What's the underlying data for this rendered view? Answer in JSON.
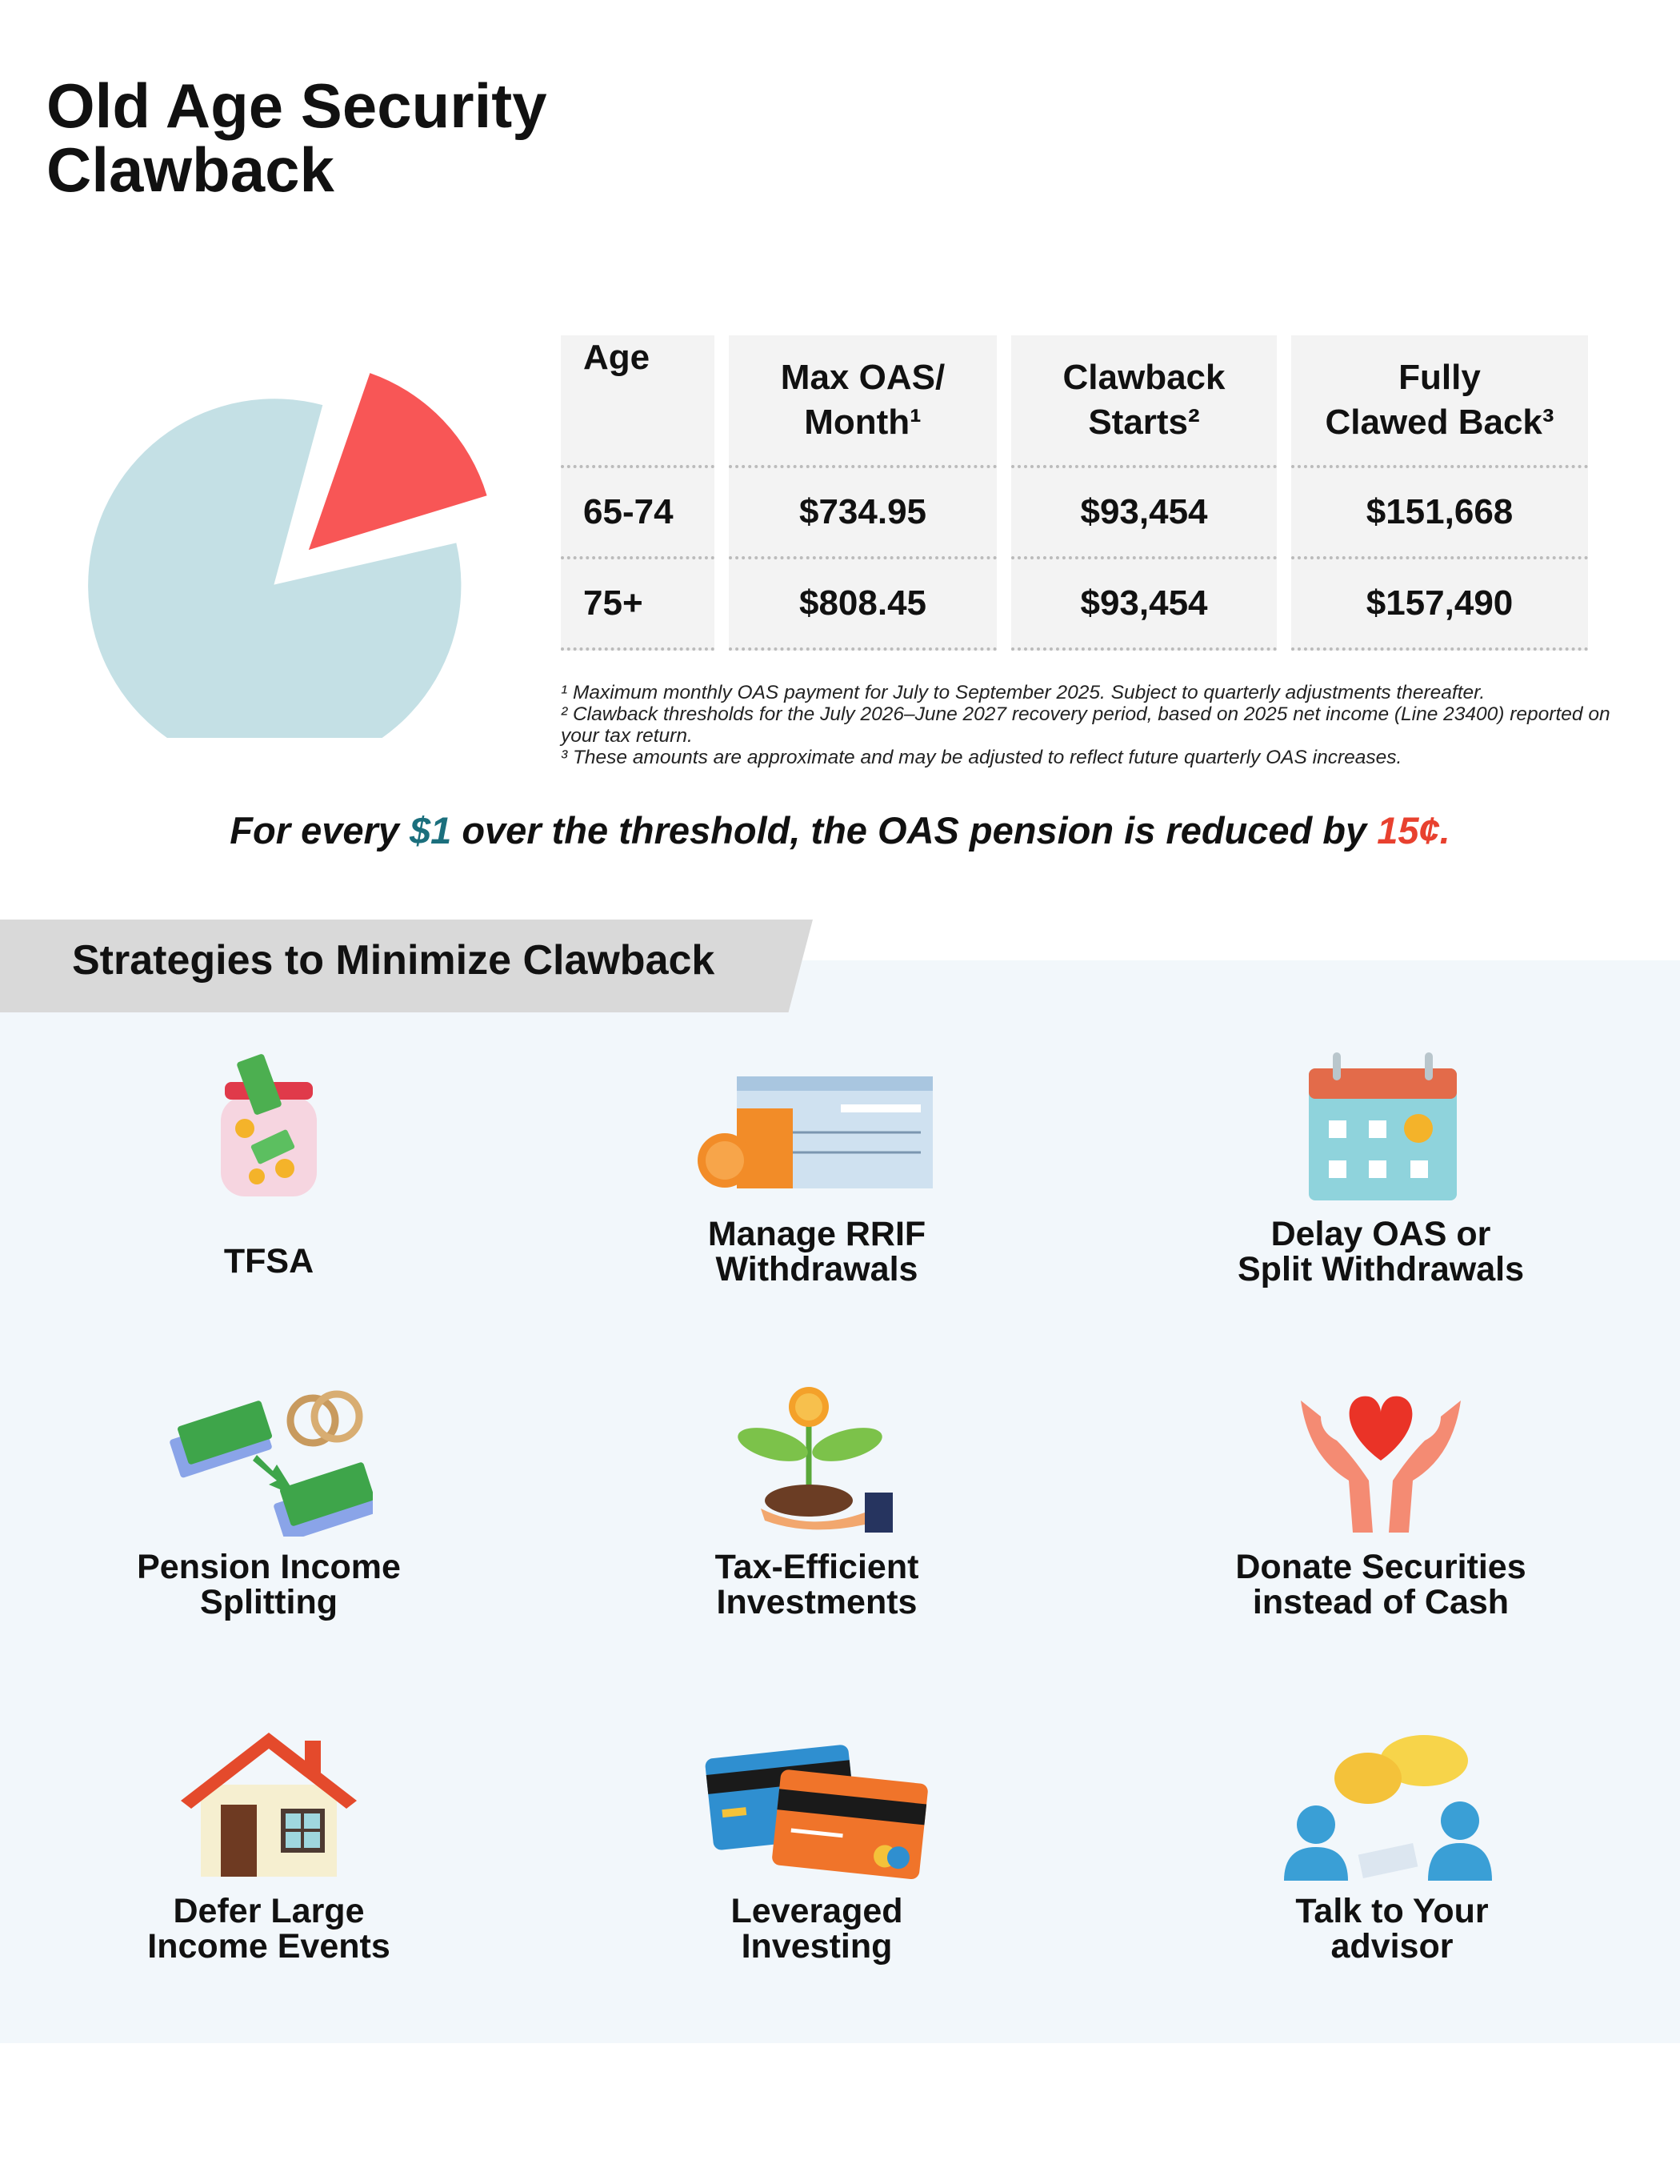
{
  "title": [
    "Old Age Security",
    "Clawback"
  ],
  "table": {
    "headers": [
      [
        "Age"
      ],
      [
        "Max OAS/",
        "Month¹"
      ],
      [
        "Clawback",
        "Starts²"
      ],
      [
        "Fully",
        "Clawed Back³"
      ]
    ],
    "rows": [
      [
        "65-74",
        "$734.95",
        "$93,454",
        "$151,668"
      ],
      [
        "75+",
        "$808.45",
        "$93,454",
        "$157,490"
      ]
    ]
  },
  "footnotes": [
    "¹ Maximum monthly OAS payment for July to September 2025. Subject to quarterly adjustments thereafter.",
    "² Clawback thresholds for the July 2026–June 2027 recovery period, based on 2025 net income (Line 23400) reported on your tax return.",
    "³ These amounts are approximate and may be adjusted to reflect future quarterly OAS increases."
  ],
  "statement": [
    "For every ",
    "$1",
    " over the threshold, the OAS pension is reduced by ",
    "15¢."
  ],
  "strategies": {
    "heading": "Strategies to Minimize Clawback",
    "items": [
      {
        "lines": [
          "TFSA"
        ]
      },
      {
        "lines": [
          "Manage RRIF",
          "Withdrawals"
        ]
      },
      {
        "lines": [
          "Delay OAS or",
          "Split Withdrawals"
        ]
      },
      {
        "lines": [
          "Pension Income",
          "Splitting"
        ]
      },
      {
        "lines": [
          "Tax-Efficient",
          "Investments"
        ]
      },
      {
        "lines": [
          "Donate Securities",
          "instead of Cash"
        ]
      },
      {
        "lines": [
          "Defer Large",
          "Income Events"
        ]
      },
      {
        "lines": [
          "Leveraged",
          "Investing"
        ]
      },
      {
        "lines": [
          "Talk to Your",
          "advisor"
        ]
      }
    ]
  }
}
